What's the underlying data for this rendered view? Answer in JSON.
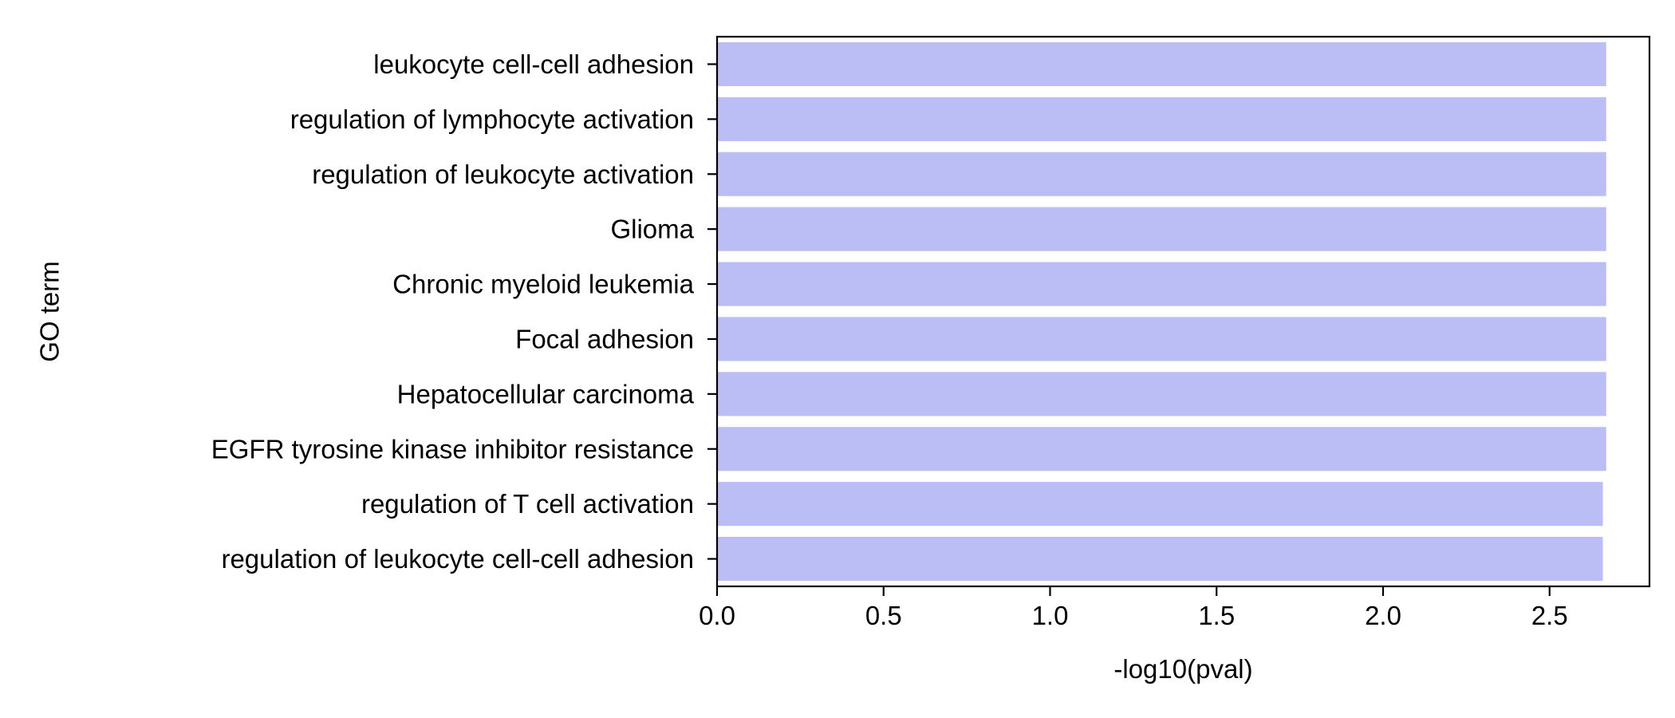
{
  "chart_data": {
    "type": "bar",
    "orientation": "horizontal",
    "title": "",
    "xlabel": "-log10(pval)",
    "ylabel": "GO term",
    "xlim": [
      0,
      2.8
    ],
    "xticks": [
      0.0,
      0.5,
      1.0,
      1.5,
      2.0,
      2.5
    ],
    "xtick_labels": [
      "0.0",
      "0.5",
      "1.0",
      "1.5",
      "2.0",
      "2.5"
    ],
    "grid": false,
    "legend": false,
    "bar_color": "#bbbef5",
    "categories": [
      "leukocyte cell-cell adhesion",
      "regulation of lymphocyte activation",
      "regulation of leukocyte activation",
      "Glioma",
      "Chronic myeloid leukemia",
      "Focal adhesion",
      "Hepatocellular carcinoma",
      "EGFR tyrosine kinase inhibitor resistance",
      "regulation of T cell activation",
      "regulation of leukocyte cell-cell adhesion"
    ],
    "values": [
      2.67,
      2.67,
      2.67,
      2.67,
      2.67,
      2.67,
      2.67,
      2.67,
      2.66,
      2.66
    ]
  }
}
